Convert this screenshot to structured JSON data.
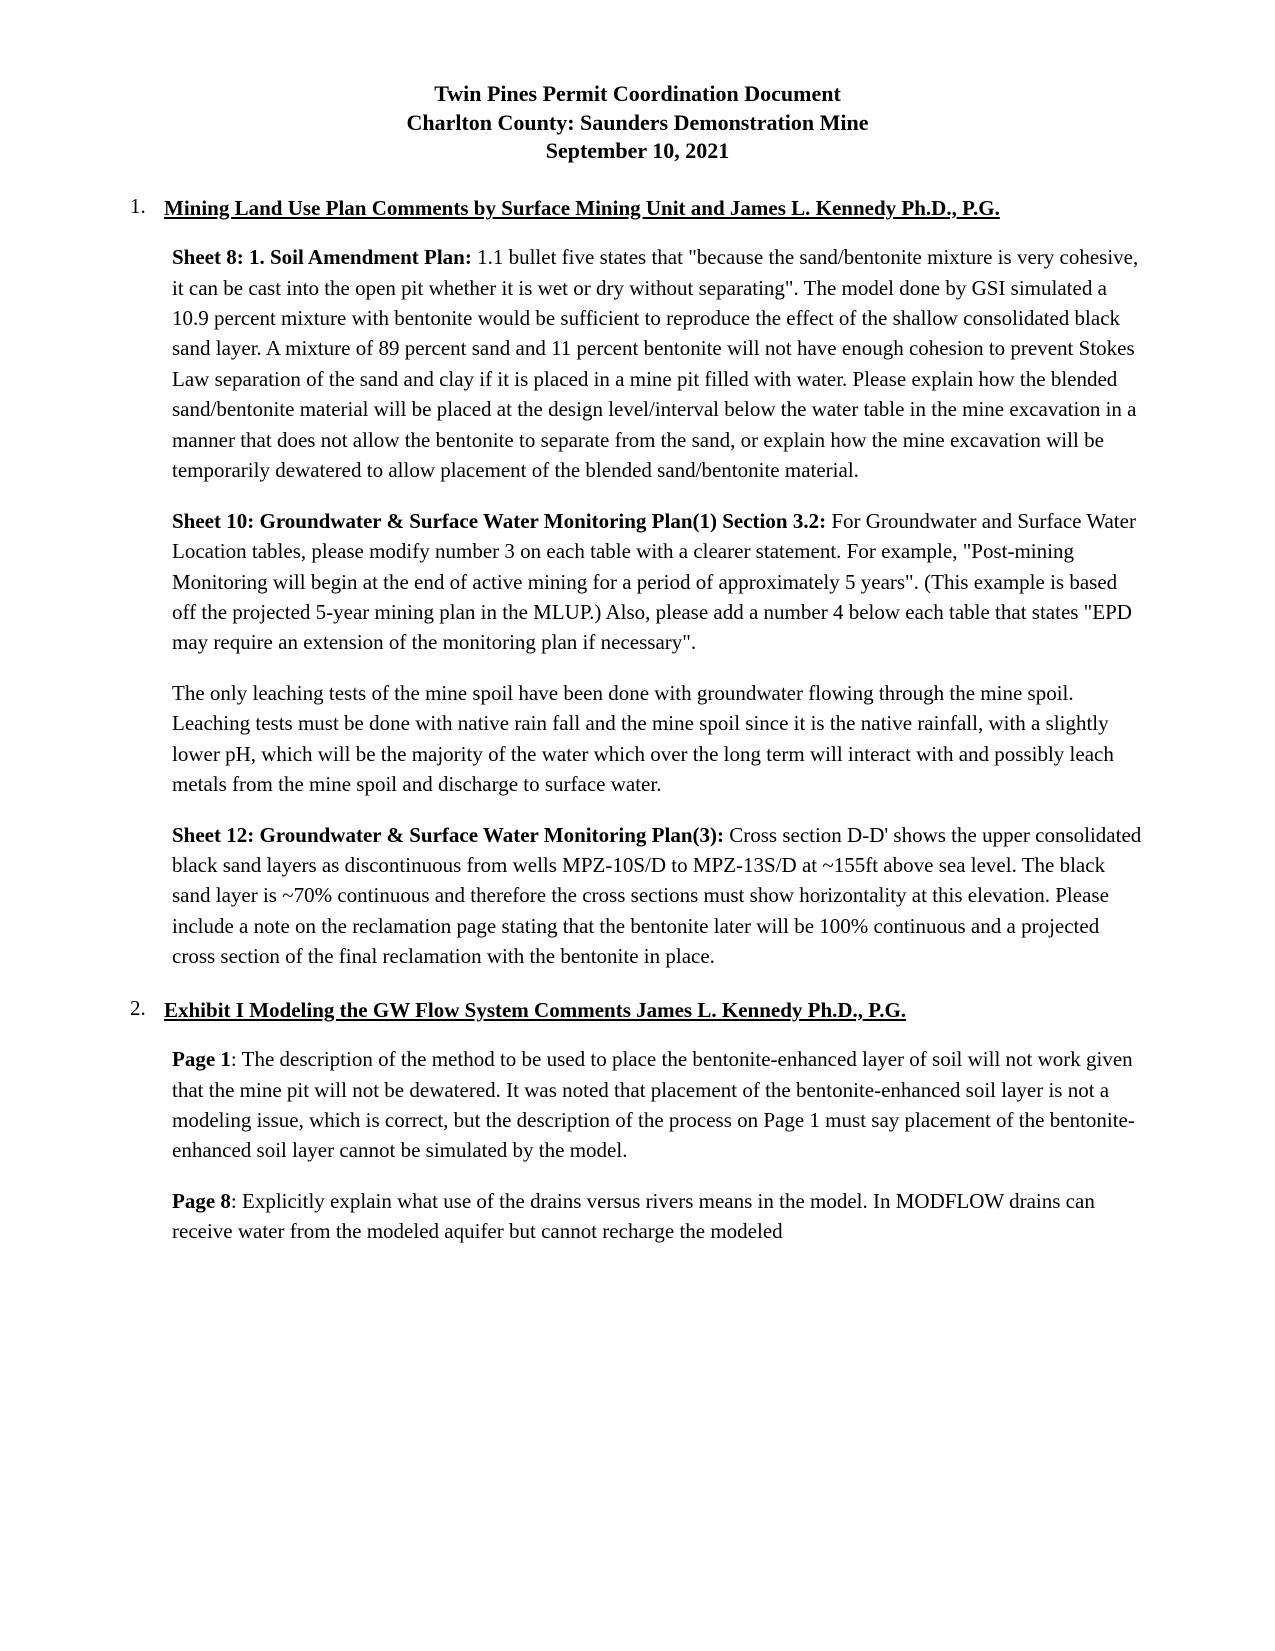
{
  "title_line1": "Twin Pines Permit Coordination Document",
  "title_line2": "Charlton County:  Saunders Demonstration Mine",
  "title_line3": "September 10, 2021",
  "section1": {
    "num": "1.",
    "heading": "Mining Land Use Plan Comments by Surface Mining Unit and James L. Kennedy Ph.D., P.G.",
    "p1_label": "Sheet 8: 1. Soil Amendment Plan: ",
    "p1_body": "1.1 bullet five states that \"because the sand/bentonite mixture is very cohesive, it can be cast into the open pit whether it is wet or dry without separating\". The model done by GSI simulated a 10.9 percent mixture with bentonite would be sufficient to reproduce the effect of the shallow consolidated black sand layer. A mixture of 89 percent sand and 11 percent bentonite will not have enough cohesion to prevent Stokes Law separation of the sand and clay if it is placed in a mine pit filled with water. Please explain how the blended sand/bentonite material will be placed at the design level/interval below the water table in the mine excavation in a manner that does not allow the bentonite to separate from the sand, or explain how the mine excavation will be temporarily dewatered to allow placement of the blended sand/bentonite material.",
    "p2_label": "Sheet 10: Groundwater & Surface Water Monitoring Plan(1) Section 3.2: ",
    "p2_body": "For Groundwater and Surface Water Location tables, please modify number 3 on each table with a clearer statement. For example, \"Post-mining Monitoring will begin at the end of active mining for a period of approximately 5 years\". (This example is based off the projected 5-year mining plan in the MLUP.) Also,  please add a number 4  below each table that states \"EPD may require an extension of the monitoring plan if necessary\".",
    "p3_body": "The only leaching tests of the mine spoil have been done with groundwater flowing through the mine spoil. Leaching tests must be done with native rain fall and the mine spoil since it is the native rainfall, with a slightly lower pH, which will be the majority of the water which over the long term will interact with and possibly leach metals from the mine spoil and discharge to surface water.",
    "p4_label": "Sheet 12: Groundwater & Surface Water Monitoring Plan(3): ",
    "p4_body": "Cross section D-D' shows the upper consolidated black sand layers as discontinuous from wells MPZ-10S/D to MPZ-13S/D at ~155ft above sea level. The black sand layer is ~70% continuous and therefore the cross sections must show horizontality at this elevation. Please include a note on the reclamation page stating that the bentonite later will be 100% continuous and a projected cross section of the final reclamation with the bentonite in place."
  },
  "section2": {
    "num": "2.",
    "heading": "Exhibit I Modeling the GW Flow System Comments James L. Kennedy Ph.D., P.G.",
    "p1_label": "Page 1",
    "p1_body": ": The description of the method to be used to place the bentonite-enhanced layer of soil will not work given that the mine pit will not be dewatered. It was noted that placement of the bentonite-enhanced soil layer is not a modeling issue, which is correct, but the description of the process on Page 1 must say placement of the bentonite-enhanced soil layer cannot be simulated by the model.",
    "p2_label": "Page 8",
    "p2_body": ": Explicitly explain what use of the drains versus rivers means in the model. In MODFLOW drains can receive water from the modeled aquifer but cannot recharge the modeled"
  }
}
